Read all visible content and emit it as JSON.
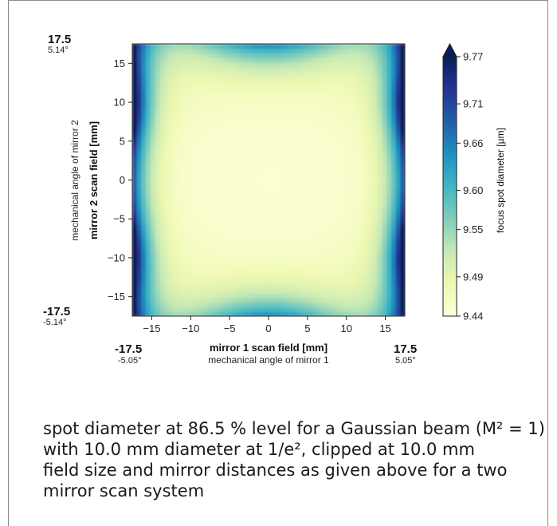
{
  "chart_data": {
    "type": "heatmap",
    "xlabel": "mirror 1 scan field [mm]",
    "xlabel2": "mechanical angle of mirror 1",
    "ylabel": "mirror 2 scan field [mm]",
    "ylabel2": "mechanical angle of mirror 2",
    "xlim": [
      -17.5,
      17.5
    ],
    "ylim": [
      -17.5,
      17.5
    ],
    "x_ticks": [
      -15,
      -10,
      -5,
      0,
      5,
      10,
      15
    ],
    "y_ticks": [
      -15,
      -10,
      -5,
      0,
      5,
      10,
      15
    ],
    "x_tick_labels": [
      "−15",
      "−10",
      "−5",
      "0",
      "5",
      "10",
      "15"
    ],
    "y_tick_labels": [
      "−15",
      "−10",
      "−5",
      "0",
      "5",
      "10",
      "15"
    ],
    "corner_labels": {
      "y_top": "17.5",
      "y_top_angle": "5.14°",
      "y_bottom": "-17.5",
      "y_bottom_angle": "-5.14°",
      "x_left": "-17.5",
      "x_left_angle": "-5.05°",
      "x_right": "17.5",
      "x_right_angle": "5.05°"
    },
    "colorbar": {
      "label": "focus spot diameter [µm]",
      "min": 9.44,
      "max": 9.77,
      "ticks": [
        9.77,
        9.71,
        9.66,
        9.6,
        9.55,
        9.49,
        9.44
      ],
      "tick_labels": [
        "9.77",
        "9.71",
        "9.66",
        "9.60",
        "9.55",
        "9.49",
        "9.44"
      ],
      "colormap": "YlGnBu",
      "colors": [
        "#ffffd9",
        "#edf8b1",
        "#c7e9b4",
        "#7fcdbb",
        "#41b6c4",
        "#1d91c0",
        "#225ea8",
        "#253494",
        "#081d58"
      ]
    },
    "grid": false
  },
  "caption": {
    "line1": "spot diameter at 86.5 % level for a Gaussian beam (M² = 1)",
    "line2": "with 10.0 mm diameter at 1/e², clipped at 10.0 mm",
    "line3": "field size and mirror distances as given above for a two",
    "line4": "mirror scan system"
  }
}
